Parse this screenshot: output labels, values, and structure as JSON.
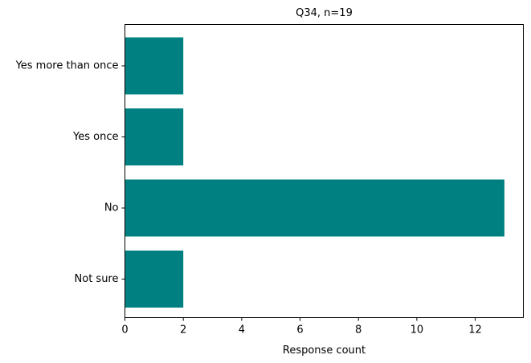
{
  "chart_data": {
    "type": "bar",
    "orientation": "horizontal",
    "title": "Q34, n=19",
    "xlabel": "Response count",
    "ylabel": "",
    "categories": [
      "Yes more than once",
      "Yes once",
      "No",
      "Not sure"
    ],
    "values": [
      2,
      2,
      13,
      2
    ],
    "xlim": [
      0,
      13.65
    ],
    "xticks": [
      0,
      2,
      4,
      6,
      8,
      10,
      12
    ],
    "grid": false,
    "bar_color": "#008080"
  }
}
